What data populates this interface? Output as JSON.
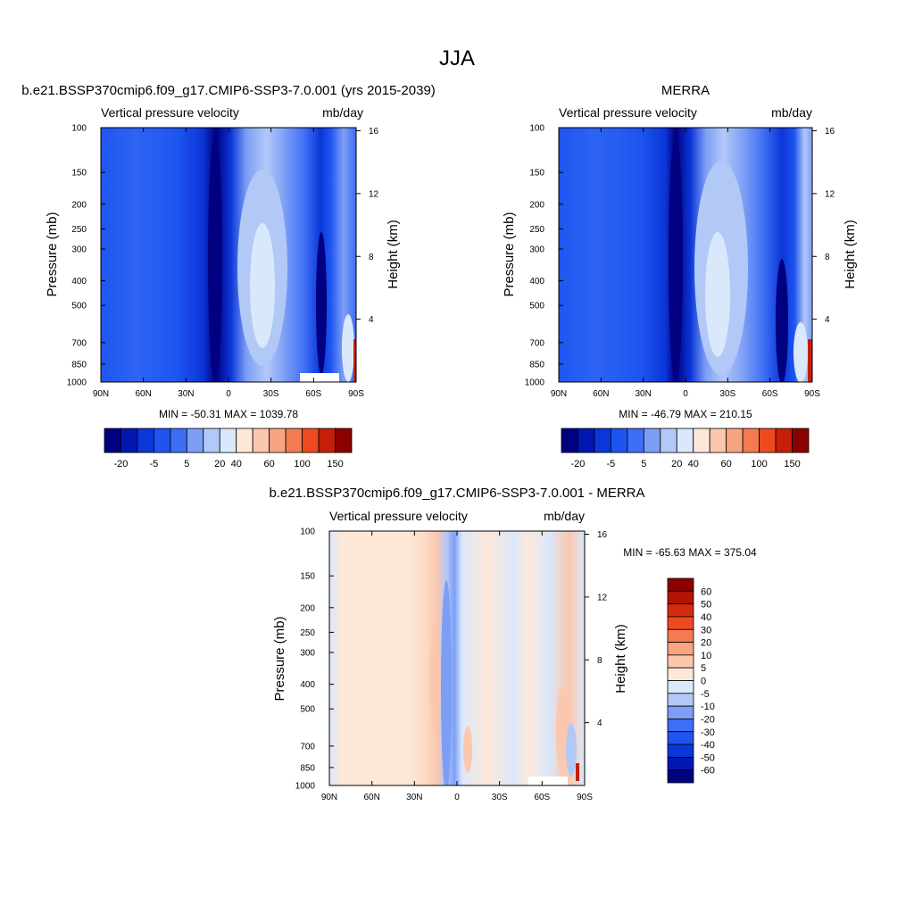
{
  "figure_title": "JJA",
  "chart_data": [
    {
      "type": "heatmap",
      "title": "b.e21.BSSP370cmip6.f09_g17.CMIP6-SSP3-7.0.001 (yrs 2015-2039)",
      "left_label": "Vertical pressure velocity",
      "right_label": "mb/day",
      "xlabel": "",
      "ylabel": "Pressure (mb)",
      "ylabel_right": "Height (km)",
      "x_ticks": [
        "90N",
        "60N",
        "30N",
        "0",
        "30S",
        "60S",
        "90S"
      ],
      "y_ticks": [
        "100",
        "150",
        "200",
        "250",
        "300",
        "400",
        "500",
        "700",
        "850",
        "1000"
      ],
      "y_right_ticks": [
        "4",
        "8",
        "12",
        "16"
      ],
      "ylim": [
        1000,
        100
      ],
      "stats": "MIN = -50.31  MAX = 1039.78",
      "colorbar": {
        "orientation": "horizontal",
        "labels": [
          "-20",
          "-5",
          "5",
          "20",
          "40",
          "60",
          "100",
          "150"
        ],
        "colors": [
          "#000080",
          "#0018b0",
          "#0b36d8",
          "#1e55f0",
          "#3d6ef5",
          "#7d9ef5",
          "#b2c9f8",
          "#dae8fc",
          "#fde8d8",
          "#fbc7ad",
          "#f8a382",
          "#f47a52",
          "#ed4a20",
          "#c61e0b",
          "#8c0000"
        ]
      }
    },
    {
      "type": "heatmap",
      "title": "MERRA",
      "left_label": "Vertical pressure velocity",
      "right_label": "mb/day",
      "xlabel": "",
      "ylabel": "Pressure (mb)",
      "ylabel_right": "Height (km)",
      "x_ticks": [
        "90N",
        "60N",
        "30N",
        "0",
        "30S",
        "60S",
        "90S"
      ],
      "y_ticks": [
        "100",
        "150",
        "200",
        "250",
        "300",
        "400",
        "500",
        "700",
        "850",
        "1000"
      ],
      "y_right_ticks": [
        "4",
        "8",
        "12",
        "16"
      ],
      "ylim": [
        1000,
        100
      ],
      "stats": "MIN = -46.79  MAX = 210.15",
      "colorbar": {
        "orientation": "horizontal",
        "labels": [
          "-20",
          "-5",
          "5",
          "20",
          "40",
          "60",
          "100",
          "150"
        ],
        "colors": [
          "#000080",
          "#0018b0",
          "#0b36d8",
          "#1e55f0",
          "#3d6ef5",
          "#7d9ef5",
          "#b2c9f8",
          "#dae8fc",
          "#fde8d8",
          "#fbc7ad",
          "#f8a382",
          "#f47a52",
          "#ed4a20",
          "#c61e0b",
          "#8c0000"
        ]
      }
    },
    {
      "type": "heatmap",
      "title": "b.e21.BSSP370cmip6.f09_g17.CMIP6-SSP3-7.0.001 - MERRA",
      "left_label": "Vertical pressure velocity",
      "right_label": "mb/day",
      "xlabel": "",
      "ylabel": "Pressure (mb)",
      "ylabel_right": "Height (km)",
      "x_ticks": [
        "90N",
        "60N",
        "30N",
        "0",
        "30S",
        "60S",
        "90S"
      ],
      "y_ticks": [
        "100",
        "150",
        "200",
        "250",
        "300",
        "400",
        "500",
        "700",
        "850",
        "1000"
      ],
      "y_right_ticks": [
        "4",
        "8",
        "12",
        "16"
      ],
      "ylim": [
        1000,
        100
      ],
      "stats": "MIN = -65.63  MAX = 375.04",
      "colorbar": {
        "orientation": "vertical",
        "labels": [
          "60",
          "50",
          "40",
          "30",
          "20",
          "10",
          "5",
          "0",
          "-5",
          "-10",
          "-20",
          "-30",
          "-40",
          "-50",
          "-60"
        ],
        "colors": [
          "#8c0000",
          "#b01405",
          "#d42a0d",
          "#ee4a20",
          "#f47a52",
          "#f8a382",
          "#fbc7ad",
          "#fde8d8",
          "#dae8fc",
          "#b2c9f8",
          "#7d9ef5",
          "#3d6ef5",
          "#1e55f0",
          "#0b36d8",
          "#0018b0",
          "#000080"
        ]
      }
    }
  ]
}
